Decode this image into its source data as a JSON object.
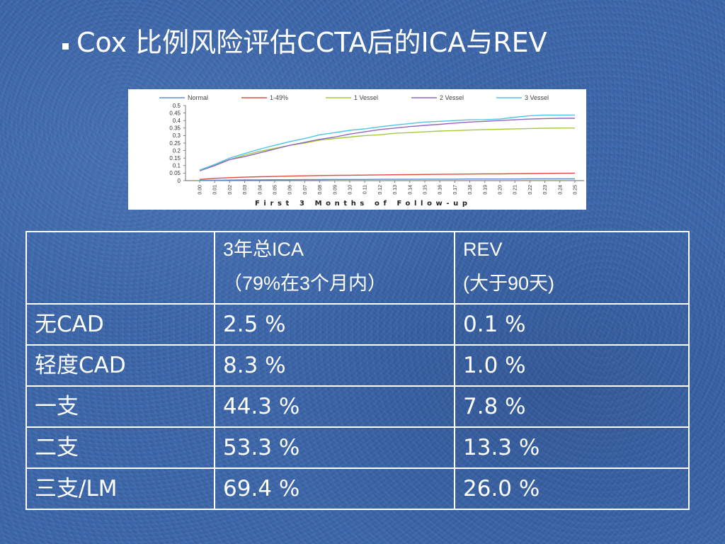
{
  "slide": {
    "title": "Cox 比例风险评估CCTA后的ICA与REV",
    "bullet_icon": "square-bullet-icon"
  },
  "colors": {
    "slide_background": "#3b66ab",
    "text": "#ffffff",
    "table_border": "#ffffff",
    "chart_background": "#ffffff"
  },
  "chart_data": {
    "type": "line",
    "xlabel": "First 3 Months of Follow-up",
    "ylabel": "",
    "x": [
      0,
      0.01,
      0.02,
      0.03,
      0.04,
      0.05,
      0.06,
      0.07,
      0.08,
      0.09,
      0.1,
      0.11,
      0.12,
      0.13,
      0.14,
      0.15,
      0.16,
      0.17,
      0.18,
      0.19,
      0.2,
      0.21,
      0.22,
      0.23,
      0.24,
      0.25
    ],
    "xticks": [
      "0.00",
      "0.01",
      "0.02",
      "0.03",
      "0.04",
      "0.05",
      "0.06",
      "0.07",
      "0.08",
      "0.09",
      "0.10",
      "0.11",
      "0.12",
      "0.13",
      "0.14",
      "0.15",
      "0.16",
      "0.17",
      "0.18",
      "0.19",
      "0.20",
      "0.21",
      "0.22",
      "0.23",
      "0.24",
      "0.25"
    ],
    "xlim": [
      0,
      0.25
    ],
    "yticks": [
      "0",
      "0.05",
      "0.1",
      "0.15",
      "0.2",
      "0.25",
      "0.3",
      "0.35",
      "0.4",
      "0.45",
      "0.5"
    ],
    "ylim": [
      0,
      0.5
    ],
    "grid": false,
    "legend": "top",
    "series": [
      {
        "name": "Normal",
        "color": "#5a8fd0",
        "values": [
          0.002,
          0.003,
          0.004,
          0.005,
          0.005,
          0.006,
          0.006,
          0.007,
          0.007,
          0.008,
          0.008,
          0.008,
          0.009,
          0.009,
          0.009,
          0.01,
          0.01,
          0.01,
          0.011,
          0.011,
          0.011,
          0.011,
          0.012,
          0.012,
          0.012,
          0.012
        ]
      },
      {
        "name": "1-49%",
        "color": "#e04a3f",
        "values": [
          0.008,
          0.015,
          0.02,
          0.023,
          0.026,
          0.028,
          0.03,
          0.032,
          0.034,
          0.035,
          0.036,
          0.037,
          0.038,
          0.039,
          0.04,
          0.041,
          0.042,
          0.043,
          0.044,
          0.045,
          0.045,
          0.046,
          0.047,
          0.048,
          0.049,
          0.05
        ]
      },
      {
        "name": "1 Vessel",
        "color": "#a6c93a",
        "values": [
          0.07,
          0.105,
          0.14,
          0.17,
          0.195,
          0.215,
          0.235,
          0.25,
          0.27,
          0.28,
          0.29,
          0.3,
          0.305,
          0.315,
          0.32,
          0.325,
          0.33,
          0.333,
          0.337,
          0.34,
          0.342,
          0.345,
          0.347,
          0.349,
          0.35,
          0.35
        ]
      },
      {
        "name": "2 Vessel",
        "color": "#9065c0",
        "values": [
          0.065,
          0.1,
          0.14,
          0.16,
          0.185,
          0.21,
          0.235,
          0.255,
          0.275,
          0.29,
          0.31,
          0.325,
          0.34,
          0.35,
          0.36,
          0.368,
          0.375,
          0.383,
          0.39,
          0.395,
          0.4,
          0.405,
          0.41,
          0.413,
          0.415,
          0.415
        ]
      },
      {
        "name": "3 Vessel",
        "color": "#4fc3e6",
        "values": [
          0.07,
          0.108,
          0.15,
          0.18,
          0.21,
          0.235,
          0.26,
          0.28,
          0.305,
          0.32,
          0.335,
          0.345,
          0.358,
          0.37,
          0.38,
          0.39,
          0.395,
          0.4,
          0.405,
          0.406,
          0.41,
          0.422,
          0.432,
          0.437,
          0.437,
          0.437
        ]
      }
    ]
  },
  "table": {
    "header": {
      "ica": {
        "line1": "3年总ICA",
        "line2": "（79%在3个月内）"
      },
      "rev": {
        "line1": "REV",
        "line2": "(大于90天)"
      }
    },
    "rows": [
      {
        "label": "无CAD",
        "ica": "2.5 %",
        "rev": "0.1 %"
      },
      {
        "label": "轻度CAD",
        "ica": "8.3 %",
        "rev": "1.0 %"
      },
      {
        "label": "一支",
        "ica": "44.3 %",
        "rev": "7.8 %"
      },
      {
        "label": "二支",
        "ica": "53.3 %",
        "rev": "13.3 %"
      },
      {
        "label": "三支/LM",
        "ica": "69.4 %",
        "rev": "26.0 %"
      }
    ]
  }
}
